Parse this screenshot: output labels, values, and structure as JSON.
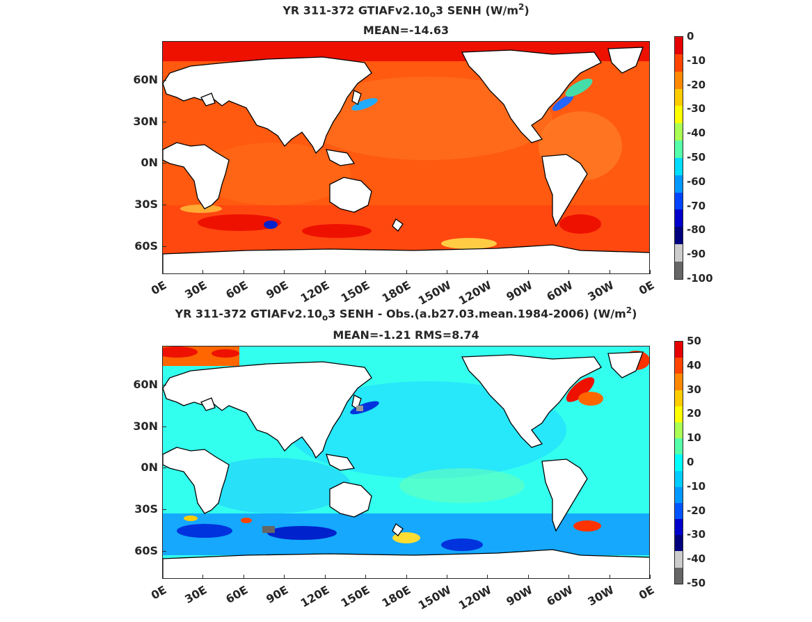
{
  "panels": [
    {
      "id": "top",
      "title_line1_a": "YR 311-372 GTIAFv2.10",
      "title_line1_sub": "o",
      "title_line1_b": "3  SENH (W/m",
      "title_line1_sup": "2",
      "title_line1_c": ")",
      "title_line2": "MEAN=-14.63",
      "colorbar_labels": [
        "0",
        "-10",
        "-20",
        "-30",
        "-40",
        "-50",
        "-60",
        "-70",
        "-80",
        "-90",
        "-100"
      ],
      "colorbar_colors": [
        "#e60000",
        "#ff4400",
        "#ff8800",
        "#ffcc00",
        "#ffff00",
        "#aaff55",
        "#55ffaa",
        "#00ddff",
        "#0099ff",
        "#0044ff",
        "#0000cc",
        "#00007f",
        "#cccccc",
        "#666666"
      ]
    },
    {
      "id": "bottom",
      "title_line1_a": "YR 311-372 GTIAFv2.10",
      "title_line1_sub": "o",
      "title_line1_b": "3 SENH - Obs.(a.b27.03.mean.1984-2006) (W/m",
      "title_line1_sup": "2",
      "title_line1_c": ")",
      "title_line2": "MEAN=-1.21 RMS=8.74",
      "colorbar_labels": [
        "50",
        "40",
        "30",
        "20",
        "10",
        "0",
        "-10",
        "-20",
        "-30",
        "-40",
        "-50"
      ],
      "colorbar_colors": [
        "#e60000",
        "#ff4400",
        "#ff8800",
        "#ffcc00",
        "#ffff00",
        "#aaff55",
        "#55ffaa",
        "#00ffff",
        "#00ccff",
        "#0099ff",
        "#0055ff",
        "#0000cc",
        "#00007f",
        "#cccccc",
        "#666666"
      ]
    }
  ],
  "lat_labels": [
    "60N",
    "30N",
    "0N",
    "30S",
    "60S"
  ],
  "lon_labels": [
    "0E",
    "30E",
    "60E",
    "90E",
    "120E",
    "150E",
    "180E",
    "150W",
    "120W",
    "90W",
    "60W",
    "30W",
    "0E"
  ]
}
